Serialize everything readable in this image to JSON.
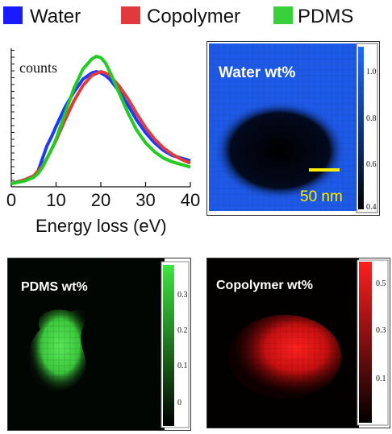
{
  "legend": [
    {
      "label": "Water",
      "color": "#1a1aff"
    },
    {
      "label": "Copolymer",
      "color": "#e23a3a"
    },
    {
      "label": "PDMS",
      "color": "#3ad03a"
    }
  ],
  "chart_data": [
    {
      "type": "line",
      "xlabel": "Energy loss (eV)",
      "ylabel": "counts",
      "xlim": [
        0,
        40
      ],
      "x_ticks": [
        "0",
        "10",
        "20",
        "30",
        "40"
      ],
      "series": [
        {
          "name": "Water",
          "color": "#1a3aff",
          "x": [
            0,
            3,
            5,
            6,
            7,
            8,
            9,
            10,
            12,
            14,
            16,
            18,
            19,
            20,
            21,
            22,
            24,
            26,
            28,
            30,
            32,
            34,
            36,
            38,
            40
          ],
          "y": [
            0.0,
            0.03,
            0.06,
            0.1,
            0.2,
            0.3,
            0.37,
            0.45,
            0.6,
            0.72,
            0.82,
            0.87,
            0.88,
            0.87,
            0.85,
            0.82,
            0.73,
            0.62,
            0.5,
            0.4,
            0.32,
            0.26,
            0.22,
            0.2,
            0.18
          ]
        },
        {
          "name": "Copolymer",
          "color": "#e23a3a",
          "x": [
            0,
            3,
            5,
            6,
            7,
            8,
            9,
            10,
            12,
            14,
            16,
            18,
            20,
            21,
            22,
            24,
            26,
            28,
            30,
            32,
            34,
            36,
            38,
            40
          ],
          "y": [
            0.0,
            0.03,
            0.06,
            0.1,
            0.14,
            0.2,
            0.27,
            0.34,
            0.5,
            0.65,
            0.77,
            0.85,
            0.88,
            0.87,
            0.85,
            0.77,
            0.67,
            0.55,
            0.44,
            0.35,
            0.28,
            0.23,
            0.19,
            0.16
          ]
        },
        {
          "name": "PDMS",
          "color": "#22cc22",
          "x": [
            0,
            3,
            5,
            6,
            7,
            8,
            9,
            10,
            12,
            14,
            16,
            18,
            19,
            20,
            21,
            22,
            24,
            26,
            28,
            30,
            32,
            34,
            36,
            38,
            40
          ],
          "y": [
            0.0,
            0.02,
            0.05,
            0.08,
            0.13,
            0.2,
            0.27,
            0.35,
            0.55,
            0.75,
            0.9,
            0.98,
            1.0,
            0.99,
            0.95,
            0.88,
            0.72,
            0.56,
            0.42,
            0.32,
            0.25,
            0.2,
            0.17,
            0.15,
            0.13
          ]
        }
      ]
    },
    {
      "type": "heatmap",
      "title": "Water wt%",
      "colorbar_ticks": [
        "1.0",
        "0.8",
        "0.6",
        "0.4"
      ],
      "colormap": [
        "#000000",
        "#1e6bff"
      ],
      "scale_bar_label": "50 nm",
      "scale_bar_color": "#ffee00"
    },
    {
      "type": "heatmap",
      "title": "PDMS wt%",
      "colorbar_ticks": [
        "0.3",
        "0.2",
        "0.1",
        "0"
      ],
      "colormap": [
        "#000000",
        "#3ee63e"
      ]
    },
    {
      "type": "heatmap",
      "title": "Copolymer wt%",
      "colorbar_ticks": [
        "0.5",
        "0.3",
        "0.1"
      ],
      "colormap": [
        "#000000",
        "#ff1e1e"
      ]
    }
  ]
}
